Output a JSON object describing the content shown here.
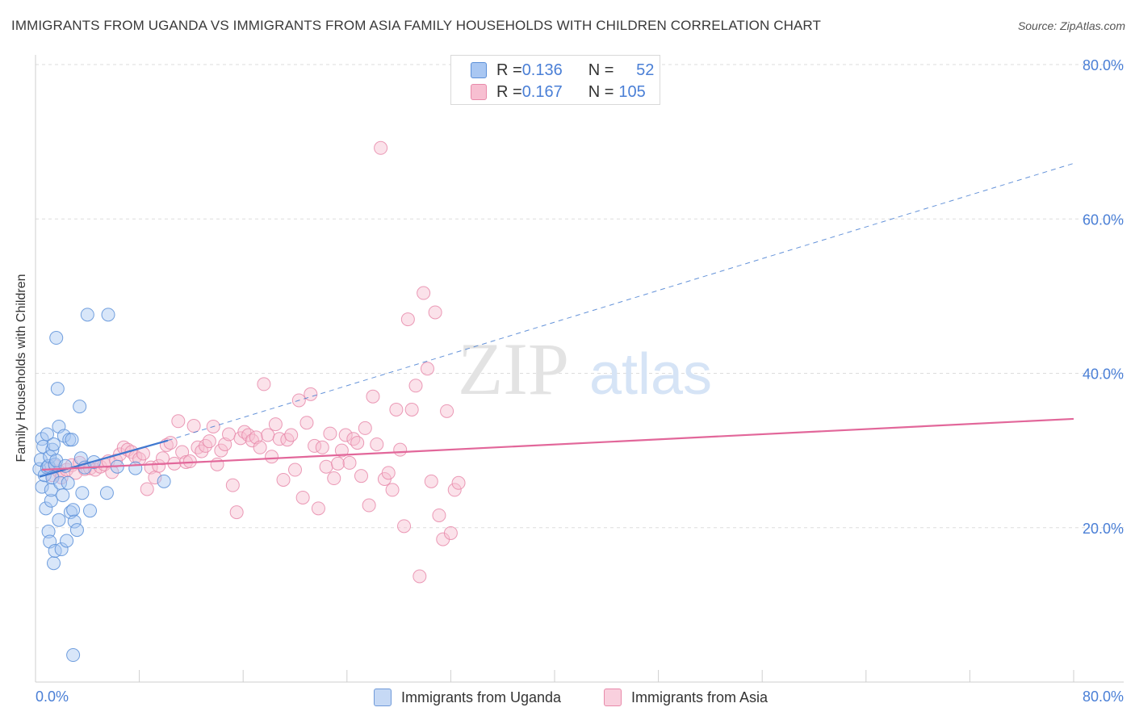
{
  "title": "IMMIGRANTS FROM UGANDA VS IMMIGRANTS FROM ASIA FAMILY HOUSEHOLDS WITH CHILDREN CORRELATION CHART",
  "source": "Source: ZipAtlas.com",
  "watermark": {
    "zip": "ZIP",
    "atlas": "atlas"
  },
  "legend": {
    "rows": [
      {
        "r_label": "R = ",
        "r_value": "0.136",
        "n_label": "N = ",
        "n_value": "52"
      },
      {
        "r_label": "R = ",
        "r_value": "0.167",
        "n_label": "N = ",
        "n_value": "105"
      }
    ]
  },
  "bottom_legend": [
    "Immigrants from Uganda",
    "Immigrants from Asia"
  ],
  "colors": {
    "uganda_fill": "#a9c7f2",
    "uganda_stroke": "#5b8fd8",
    "uganda_line": "#3f78d0",
    "asia_fill": "#f7bfd1",
    "asia_stroke": "#e88aaa",
    "asia_line": "#e2679a",
    "tick_label": "#4a7fd6",
    "grid": "#dddddd"
  },
  "chart_data": {
    "type": "scatter",
    "title": "IMMIGRANTS FROM UGANDA VS IMMIGRANTS FROM ASIA FAMILY HOUSEHOLDS WITH CHILDREN CORRELATION CHART",
    "xlabel": "",
    "ylabel": "Family Households with Children",
    "xlim": [
      0,
      80
    ],
    "ylim": [
      0,
      80
    ],
    "x_tick_labels": [
      "0.0%",
      "80.0%"
    ],
    "y_ticks": [
      20,
      40,
      60,
      80
    ],
    "y_tick_labels": [
      "20.0%",
      "40.0%",
      "60.0%",
      "80.0%"
    ],
    "grid": true,
    "series": [
      {
        "name": "Immigrants from Uganda",
        "R": 0.136,
        "N": 52,
        "trend": {
          "x": [
            0.3,
            10.2
          ],
          "y": [
            26.6,
            31.3
          ],
          "style": "solid"
        },
        "trend_extension": {
          "x": [
            10.2,
            80.0
          ],
          "y": [
            31.3,
            67.2
          ],
          "style": "dashed"
        },
        "x": [
          0.3,
          0.4,
          0.5,
          0.5,
          0.6,
          0.7,
          0.8,
          0.9,
          0.9,
          1.0,
          1.0,
          1.1,
          1.1,
          1.2,
          1.2,
          1.3,
          1.3,
          1.4,
          1.4,
          1.5,
          1.5,
          1.6,
          1.6,
          1.7,
          1.8,
          1.8,
          1.9,
          2.0,
          2.1,
          2.2,
          2.3,
          2.4,
          2.5,
          2.6,
          2.7,
          2.8,
          2.9,
          2.9,
          3.0,
          3.2,
          3.4,
          3.5,
          3.6,
          3.8,
          4.0,
          4.2,
          4.5,
          5.5,
          5.6,
          6.3,
          7.7,
          9.9
        ],
        "y": [
          27.6,
          28.8,
          31.5,
          25.3,
          30.5,
          26.8,
          22.5,
          27.8,
          32.1,
          19.5,
          28.0,
          18.2,
          29.2,
          23.5,
          24.9,
          30.1,
          26.5,
          15.4,
          30.8,
          28.2,
          17.0,
          44.6,
          28.7,
          38.0,
          33.1,
          21.0,
          25.8,
          17.2,
          24.2,
          31.9,
          28.0,
          18.3,
          25.8,
          31.4,
          22.0,
          31.4,
          22.3,
          3.5,
          20.8,
          19.7,
          35.7,
          29.0,
          24.5,
          27.8,
          47.6,
          22.2,
          28.5,
          24.5,
          47.6,
          27.9,
          27.7,
          26.0
        ]
      },
      {
        "name": "Immigrants from Asia",
        "R": 0.167,
        "N": 105,
        "trend": {
          "x": [
            0.5,
            80.0
          ],
          "y": [
            27.5,
            34.1
          ],
          "style": "solid"
        },
        "x": [
          1.1,
          1.3,
          1.5,
          1.8,
          2.0,
          2.4,
          2.8,
          3.1,
          3.4,
          3.8,
          4.2,
          4.6,
          5.0,
          5.3,
          5.6,
          5.9,
          6.2,
          6.5,
          6.8,
          7.1,
          7.4,
          7.7,
          8.0,
          8.3,
          8.6,
          8.9,
          9.2,
          9.5,
          9.8,
          10.1,
          10.4,
          10.7,
          11.0,
          11.3,
          11.6,
          11.9,
          12.2,
          12.5,
          12.8,
          13.1,
          13.4,
          13.7,
          14.0,
          14.3,
          14.6,
          14.9,
          15.2,
          15.5,
          15.8,
          16.1,
          16.4,
          16.7,
          17.0,
          17.3,
          17.6,
          17.9,
          18.2,
          18.5,
          18.8,
          19.1,
          19.4,
          19.7,
          20.0,
          20.3,
          20.6,
          20.9,
          21.2,
          21.5,
          21.8,
          22.1,
          22.4,
          22.7,
          23.0,
          23.3,
          23.6,
          23.9,
          24.2,
          24.5,
          24.8,
          25.1,
          25.4,
          25.7,
          26.0,
          26.3,
          26.6,
          26.9,
          27.2,
          27.5,
          27.8,
          28.1,
          28.4,
          28.7,
          29.0,
          29.3,
          29.6,
          29.9,
          30.2,
          30.5,
          30.8,
          31.1,
          31.4,
          31.7,
          32.0,
          32.3,
          32.6
        ],
        "y": [
          27.7,
          26.8,
          28.0,
          27.3,
          26.5,
          27.5,
          28.1,
          27.1,
          28.4,
          27.6,
          27.7,
          27.5,
          27.9,
          28.2,
          28.6,
          27.2,
          28.7,
          29.5,
          30.4,
          30.1,
          29.8,
          29.2,
          28.9,
          29.6,
          25.0,
          27.8,
          26.5,
          28.0,
          29.0,
          30.7,
          31.0,
          28.3,
          33.8,
          29.8,
          28.5,
          28.6,
          33.2,
          30.4,
          29.9,
          30.6,
          31.2,
          33.1,
          28.2,
          30.0,
          30.8,
          32.1,
          25.5,
          22.0,
          31.6,
          32.4,
          32.0,
          31.3,
          31.7,
          30.4,
          38.6,
          32.0,
          29.2,
          33.4,
          31.5,
          26.2,
          31.4,
          32.0,
          27.5,
          36.5,
          23.9,
          33.6,
          37.3,
          30.6,
          22.5,
          30.4,
          27.9,
          32.2,
          26.4,
          28.3,
          30.0,
          32.0,
          28.4,
          31.5,
          31.0,
          26.7,
          32.9,
          22.9,
          37.0,
          30.8,
          69.2,
          26.3,
          27.1,
          24.9,
          35.3,
          30.1,
          20.2,
          47.0,
          35.3,
          38.4,
          13.7,
          50.4,
          40.6,
          26.0,
          47.9,
          21.6,
          18.5,
          35.1,
          19.3,
          24.9,
          25.8
        ]
      }
    ]
  }
}
